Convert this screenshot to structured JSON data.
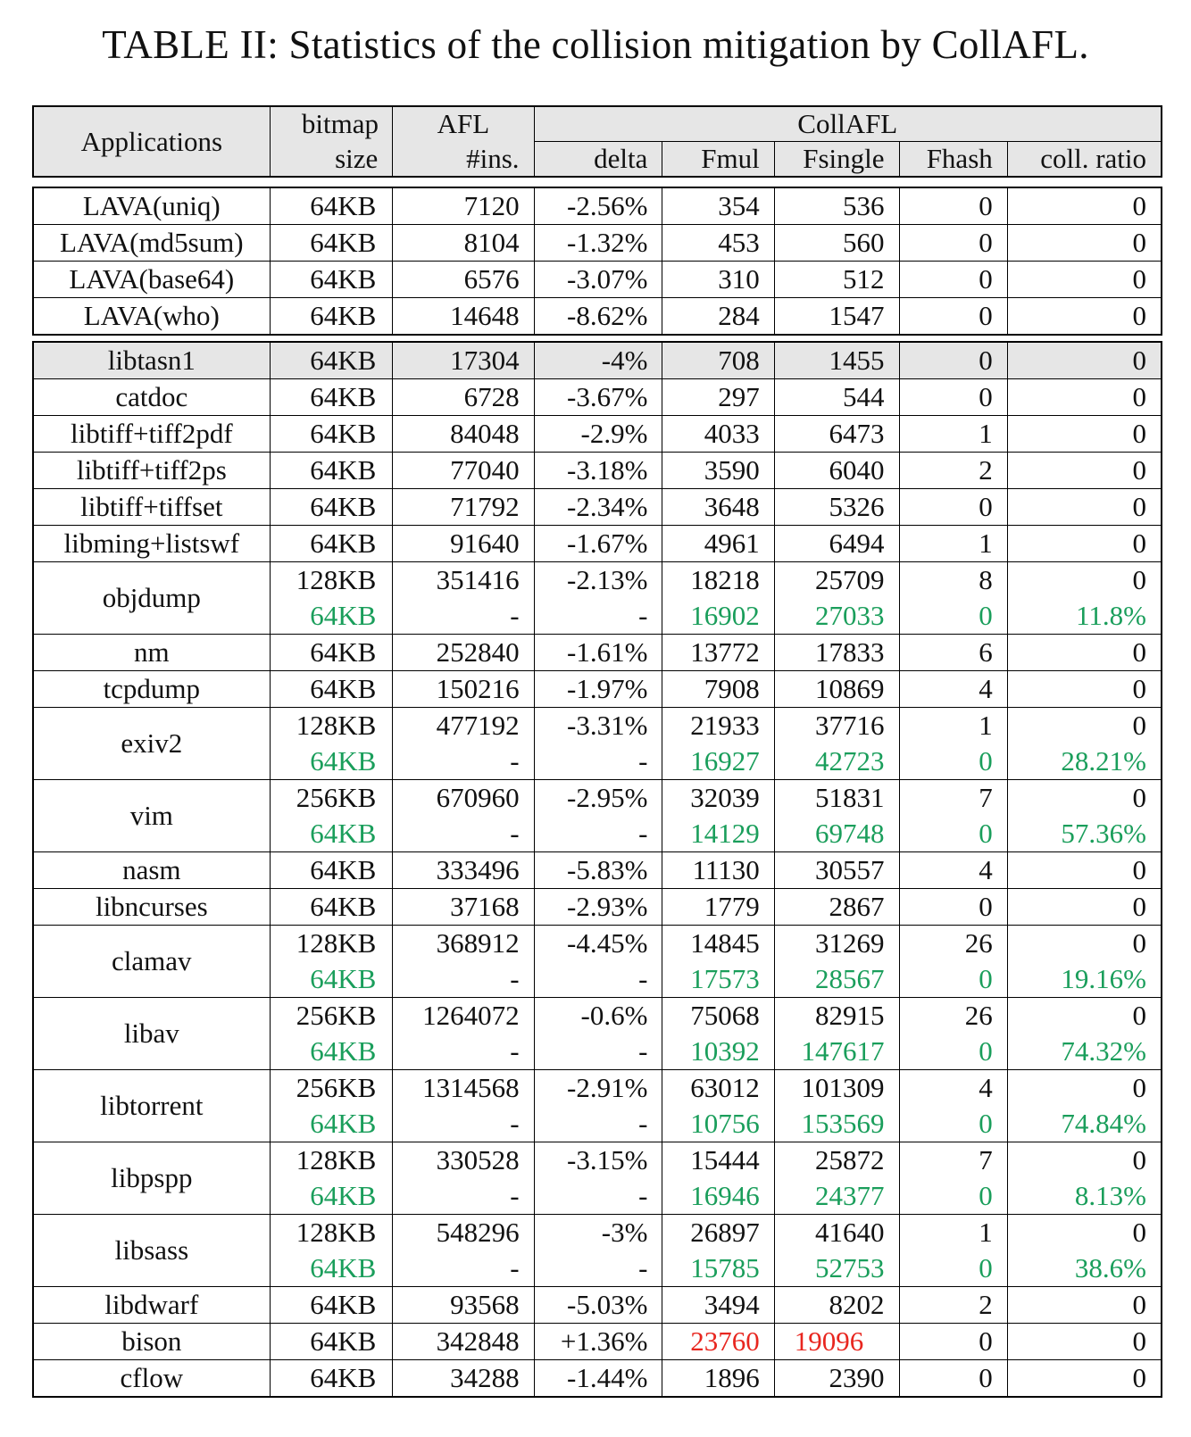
{
  "caption": "TABLE II: Statistics of the collision mitigation by CollAFL.",
  "header": {
    "applications": "Applications",
    "bitmap_line1": "bitmap",
    "bitmap_line2": "size",
    "afl_line1": "AFL",
    "afl_line2": "#ins.",
    "collafl": "CollAFL",
    "delta": "delta",
    "fmul": "Fmul",
    "fsingle": "Fsingle",
    "fhash": "Fhash",
    "coll_ratio": "coll. ratio"
  },
  "lava_rows": [
    {
      "app": "LAVA(uniq)",
      "bitmap": "64KB",
      "afl": "7120",
      "delta": "-2.56%",
      "fmul": "354",
      "fsingle": "536",
      "fhash": "0",
      "ratio": "0"
    },
    {
      "app": "LAVA(md5sum)",
      "bitmap": "64KB",
      "afl": "8104",
      "delta": "-1.32%",
      "fmul": "453",
      "fsingle": "560",
      "fhash": "0",
      "ratio": "0"
    },
    {
      "app": "LAVA(base64)",
      "bitmap": "64KB",
      "afl": "6576",
      "delta": "-3.07%",
      "fmul": "310",
      "fsingle": "512",
      "fhash": "0",
      "ratio": "0"
    },
    {
      "app": "LAVA(who)",
      "bitmap": "64KB",
      "afl": "14648",
      "delta": "-8.62%",
      "fmul": "284",
      "fsingle": "1547",
      "fhash": "0",
      "ratio": "0"
    }
  ],
  "rows": [
    {
      "app": "libtasn1",
      "bitmap": "64KB",
      "afl": "17304",
      "delta": "-4%",
      "fmul": "708",
      "fsingle": "1455",
      "fhash": "0",
      "ratio": "0"
    },
    {
      "app": "catdoc",
      "bitmap": "64KB",
      "afl": "6728",
      "delta": "-3.67%",
      "fmul": "297",
      "fsingle": "544",
      "fhash": "0",
      "ratio": "0"
    },
    {
      "app": "libtiff+tiff2pdf",
      "bitmap": "64KB",
      "afl": "84048",
      "delta": "-2.9%",
      "fmul": "4033",
      "fsingle": "6473",
      "fhash": "1",
      "ratio": "0"
    },
    {
      "app": "libtiff+tiff2ps",
      "bitmap": "64KB",
      "afl": "77040",
      "delta": "-3.18%",
      "fmul": "3590",
      "fsingle": "6040",
      "fhash": "2",
      "ratio": "0"
    },
    {
      "app": "libtiff+tiffset",
      "bitmap": "64KB",
      "afl": "71792",
      "delta": "-2.34%",
      "fmul": "3648",
      "fsingle": "5326",
      "fhash": "0",
      "ratio": "0"
    },
    {
      "app": "libming+listswf",
      "bitmap": "64KB",
      "afl": "91640",
      "delta": "-1.67%",
      "fmul": "4961",
      "fsingle": "6494",
      "fhash": "1",
      "ratio": "0"
    },
    {
      "app": "objdump",
      "bitmap": "128KB",
      "afl": "351416",
      "delta": "-2.13%",
      "fmul": "18218",
      "fsingle": "25709",
      "fhash": "8",
      "ratio": "0",
      "alt": {
        "bitmap": "64KB",
        "afl": "-",
        "delta": "-",
        "fmul": "16902",
        "fsingle": "27033",
        "fhash": "0",
        "ratio": "11.8%"
      }
    },
    {
      "app": "nm",
      "bitmap": "64KB",
      "afl": "252840",
      "delta": "-1.61%",
      "fmul": "13772",
      "fsingle": "17833",
      "fhash": "6",
      "ratio": "0"
    },
    {
      "app": "tcpdump",
      "bitmap": "64KB",
      "afl": "150216",
      "delta": "-1.97%",
      "fmul": "7908",
      "fsingle": "10869",
      "fhash": "4",
      "ratio": "0"
    },
    {
      "app": "exiv2",
      "bitmap": "128KB",
      "afl": "477192",
      "delta": "-3.31%",
      "fmul": "21933",
      "fsingle": "37716",
      "fhash": "1",
      "ratio": "0",
      "alt": {
        "bitmap": "64KB",
        "afl": "-",
        "delta": "-",
        "fmul": "16927",
        "fsingle": "42723",
        "fhash": "0",
        "ratio": "28.21%"
      }
    },
    {
      "app": "vim",
      "bitmap": "256KB",
      "afl": "670960",
      "delta": "-2.95%",
      "fmul": "32039",
      "fsingle": "51831",
      "fhash": "7",
      "ratio": "0",
      "alt": {
        "bitmap": "64KB",
        "afl": "-",
        "delta": "-",
        "fmul": "14129",
        "fsingle": "69748",
        "fhash": "0",
        "ratio": "57.36%"
      }
    },
    {
      "app": "nasm",
      "bitmap": "64KB",
      "afl": "333496",
      "delta": "-5.83%",
      "fmul": "11130",
      "fsingle": "30557",
      "fhash": "4",
      "ratio": "0"
    },
    {
      "app": "libncurses",
      "bitmap": "64KB",
      "afl": "37168",
      "delta": "-2.93%",
      "fmul": "1779",
      "fsingle": "2867",
      "fhash": "0",
      "ratio": "0"
    },
    {
      "app": "clamav",
      "bitmap": "128KB",
      "afl": "368912",
      "delta": "-4.45%",
      "fmul": "14845",
      "fsingle": "31269",
      "fhash": "26",
      "ratio": "0",
      "alt": {
        "bitmap": "64KB",
        "afl": "-",
        "delta": "-",
        "fmul": "17573",
        "fsingle": "28567",
        "fhash": "0",
        "ratio": "19.16%"
      }
    },
    {
      "app": "libav",
      "bitmap": "256KB",
      "afl": "1264072",
      "delta": "-0.6%",
      "fmul": "75068",
      "fsingle": "82915",
      "fhash": "26",
      "ratio": "0",
      "alt": {
        "bitmap": "64KB",
        "afl": "-",
        "delta": "-",
        "fmul": "10392",
        "fsingle": "147617",
        "fhash": "0",
        "ratio": "74.32%"
      }
    },
    {
      "app": "libtorrent",
      "bitmap": "256KB",
      "afl": "1314568",
      "delta": "-2.91%",
      "fmul": "63012",
      "fsingle": "101309",
      "fhash": "4",
      "ratio": "0",
      "alt": {
        "bitmap": "64KB",
        "afl": "-",
        "delta": "-",
        "fmul": "10756",
        "fsingle": "153569",
        "fhash": "0",
        "ratio": "74.84%"
      }
    },
    {
      "app": "libpspp",
      "bitmap": "128KB",
      "afl": "330528",
      "delta": "-3.15%",
      "fmul": "15444",
      "fsingle": "25872",
      "fhash": "7",
      "ratio": "0",
      "alt": {
        "bitmap": "64KB",
        "afl": "-",
        "delta": "-",
        "fmul": "16946",
        "fsingle": "24377",
        "fhash": "0",
        "ratio": "8.13%"
      }
    },
    {
      "app": "libsass",
      "bitmap": "128KB",
      "afl": "548296",
      "delta": "-3%",
      "fmul": "26897",
      "fsingle": "41640",
      "fhash": "1",
      "ratio": "0",
      "alt": {
        "bitmap": "64KB",
        "afl": "-",
        "delta": "-",
        "fmul": "15785",
        "fsingle": "52753",
        "fhash": "0",
        "ratio": "38.6%"
      }
    },
    {
      "app": "libdwarf",
      "bitmap": "64KB",
      "afl": "93568",
      "delta": "-5.03%",
      "fmul": "3494",
      "fsingle": "8202",
      "fhash": "2",
      "ratio": "0"
    },
    {
      "app": "bison",
      "bitmap": "64KB",
      "afl": "342848",
      "delta": "+1.36%",
      "fmul": "23760",
      "fsingle": "19096",
      "fhash": "0",
      "ratio": "0",
      "highlight": "red"
    },
    {
      "app": "cflow",
      "bitmap": "64KB",
      "afl": "34288",
      "delta": "-1.44%",
      "fmul": "1896",
      "fsingle": "2390",
      "fhash": "0",
      "ratio": "0"
    }
  ],
  "colors": {
    "highlight_green": "#1a9e5b",
    "highlight_red": "#e8261f",
    "shade": "#e6e6e6"
  }
}
